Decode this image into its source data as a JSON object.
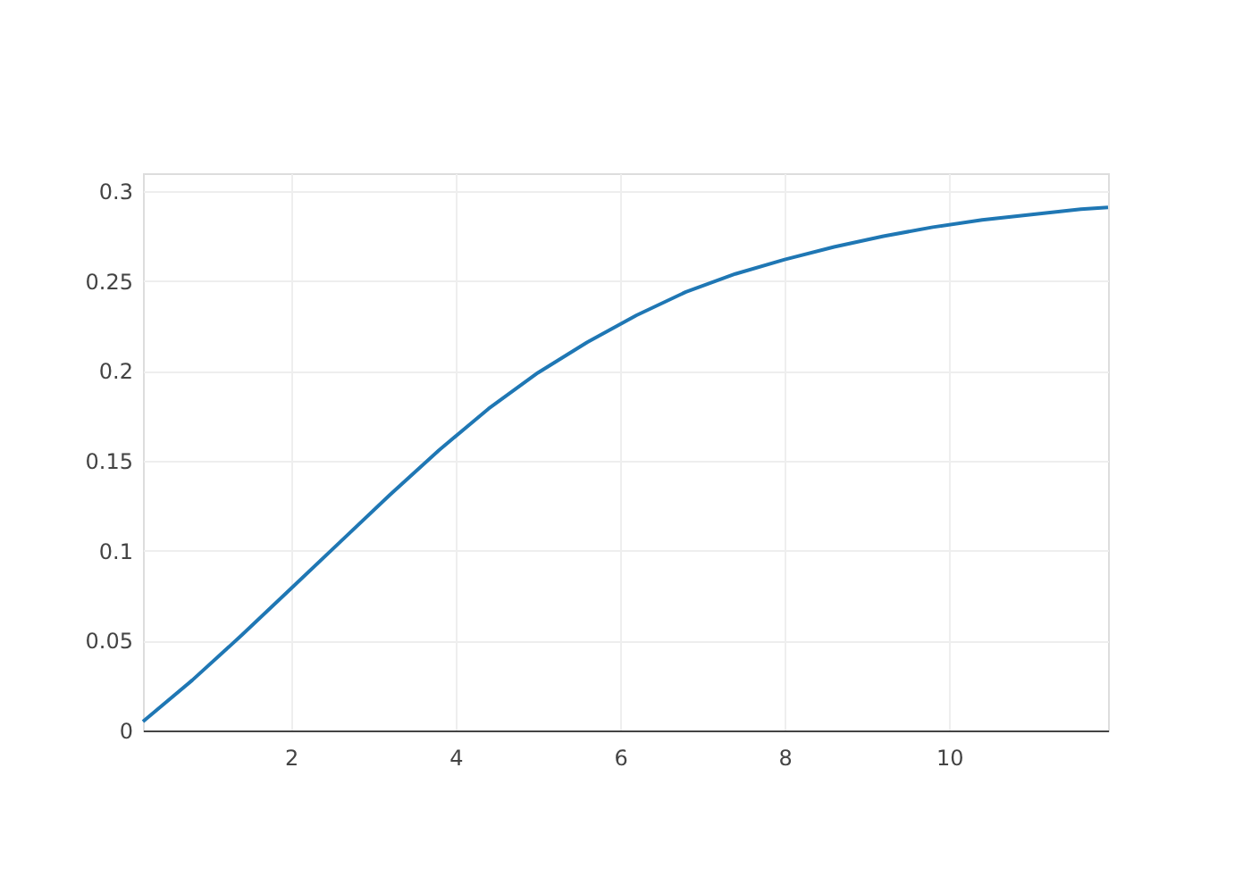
{
  "chart_data": {
    "type": "line",
    "x": [
      0.2,
      0.8,
      1.4,
      2.0,
      2.6,
      3.2,
      3.8,
      4.4,
      5.0,
      5.6,
      6.2,
      6.8,
      7.4,
      8.0,
      8.6,
      9.2,
      9.8,
      10.4,
      11.0,
      11.6,
      11.93
    ],
    "series": [
      {
        "color": "#1f77b4",
        "values": [
          0.005,
          0.028,
          0.053,
          0.079,
          0.105,
          0.131,
          0.156,
          0.179,
          0.199,
          0.216,
          0.231,
          0.244,
          0.254,
          0.262,
          0.269,
          0.275,
          0.28,
          0.284,
          0.287,
          0.29,
          0.291
        ]
      }
    ],
    "xlim": [
      0.2,
      11.93
    ],
    "ylim": [
      0,
      0.31
    ],
    "xticks": [
      2,
      4,
      6,
      8,
      10
    ],
    "yticks": [
      0,
      0.05,
      0.1,
      0.15,
      0.2,
      0.25,
      0.3
    ],
    "grid": true,
    "marker": "none",
    "line_style": "solid"
  }
}
